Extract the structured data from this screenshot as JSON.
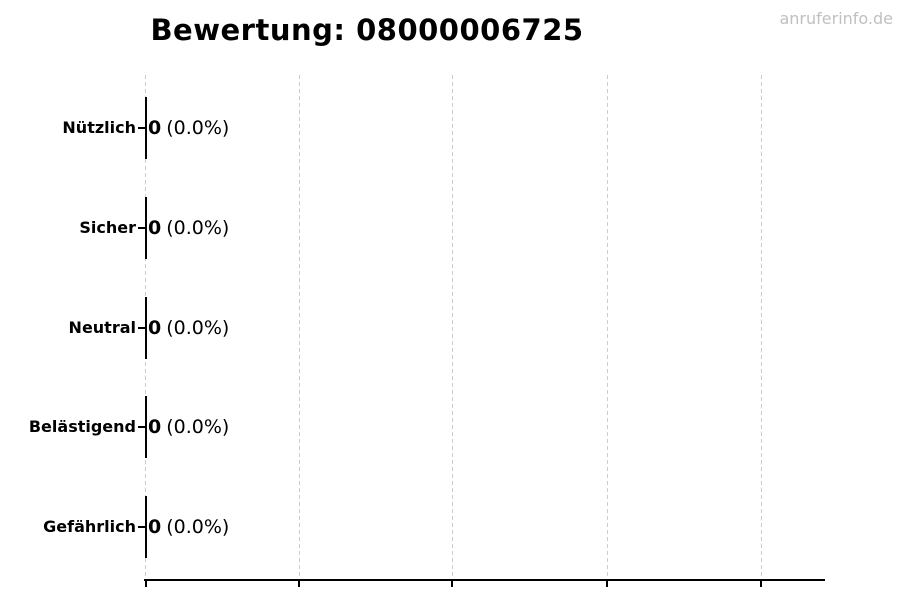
{
  "title": "Bewertung: 08000006725",
  "watermark": "anruferinfo.de",
  "colors": {
    "text": "#000000",
    "gridline": "#cccccc",
    "axis": "#000000",
    "bar_edge": "#000000",
    "watermark": "#c0c0c0",
    "background": "#ffffff"
  },
  "rows": [
    {
      "label": "Nützlich",
      "value": "0",
      "percent": "(0.0%)"
    },
    {
      "label": "Sicher",
      "value": "0",
      "percent": "(0.0%)"
    },
    {
      "label": "Neutral",
      "value": "0",
      "percent": "(0.0%)"
    },
    {
      "label": "Belästigend",
      "value": "0",
      "percent": "(0.0%)"
    },
    {
      "label": "Gefährlich",
      "value": "0",
      "percent": "(0.0%)"
    }
  ],
  "chart_data": {
    "type": "bar",
    "orientation": "horizontal",
    "title": "Bewertung: 08000006725",
    "categories": [
      "Nützlich",
      "Sicher",
      "Neutral",
      "Belästigend",
      "Gefährlich"
    ],
    "values": [
      0,
      0,
      0,
      0,
      0
    ],
    "data_labels": [
      "0 (0.0%)",
      "0 (0.0%)",
      "0 (0.0%)",
      "0 (0.0%)",
      "0 (0.0%)"
    ],
    "xlabel": "",
    "ylabel": "",
    "x_ticks": {
      "count": 5,
      "labels_visible": false
    },
    "grid": "vertical-dashed",
    "legend": "none",
    "bar_style": "zero-width edge lines (all values zero)",
    "watermark": "anruferinfo.de"
  }
}
